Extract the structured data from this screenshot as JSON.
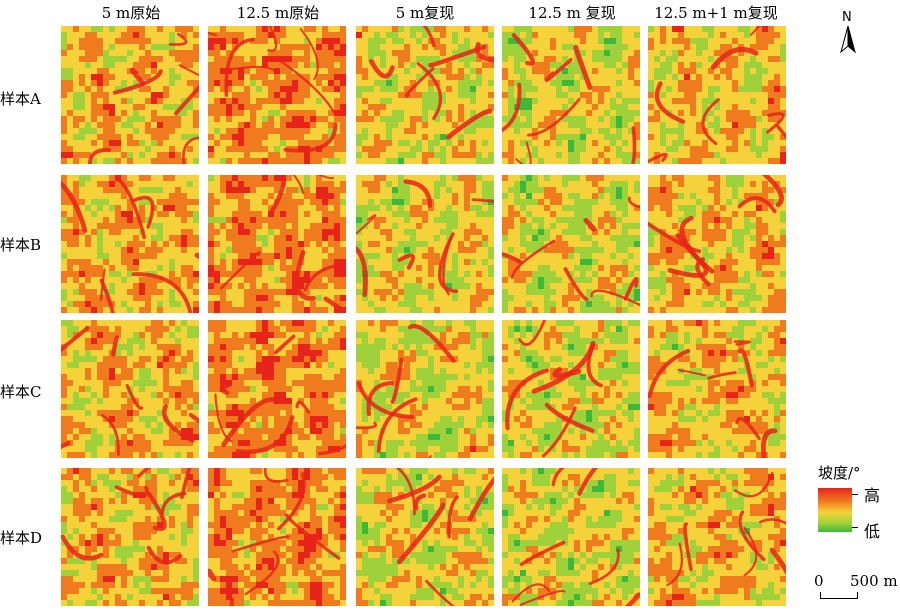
{
  "columns": [
    "5 m原始",
    "12.5 m原始",
    "5 m复现",
    "12.5 m 复现",
    "12.5 m+1 m复现"
  ],
  "rows": [
    "样本A",
    "样本B",
    "样本C",
    "样本D"
  ],
  "north_label": "N",
  "legend": {
    "title": "坡度/°",
    "high": "高",
    "low": "低",
    "colors": [
      "#e8231a",
      "#f07a1e",
      "#f5d23a",
      "#9fd23a",
      "#3cb83a"
    ]
  },
  "scale": {
    "zero": "0",
    "value": "500 m"
  }
}
